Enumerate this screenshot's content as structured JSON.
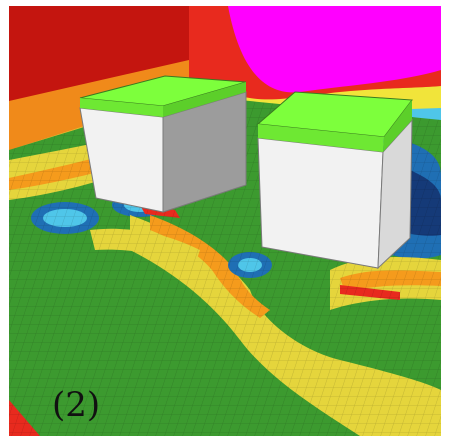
{
  "figure": {
    "panel_label": "(2)"
  },
  "colors": {
    "white_frame": "#ffffff",
    "wall_red": "#e82a1e",
    "wall_darkred": "#c4150f",
    "magenta": "#ff00ff",
    "orange": "#f59b1c",
    "yellow": "#f1e43a",
    "ground_green": "#3c9a2f",
    "light_green": "#7ccc3a",
    "cyan": "#4fc6e9",
    "blue": "#1f6fb4",
    "navy": "#153a78",
    "box_top": "#7dff3c",
    "box_face_light": "#f2f2f2",
    "box_face_mid": "#d9d9d9",
    "box_face_dark": "#9c9c9c"
  }
}
